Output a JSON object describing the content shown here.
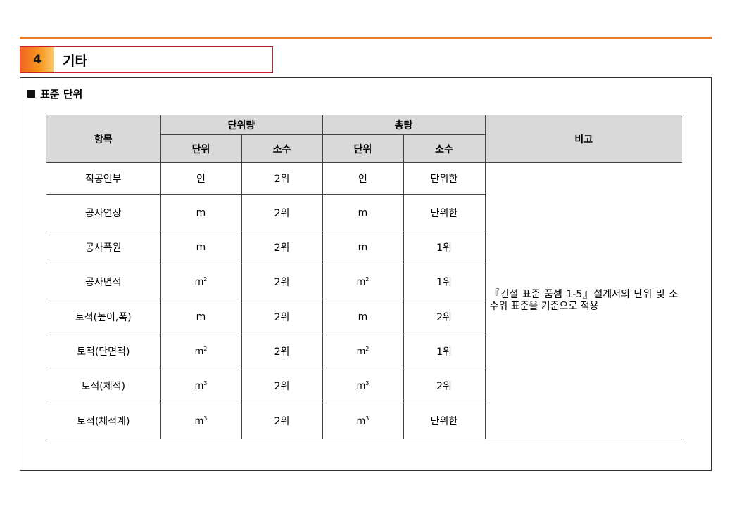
{
  "section": {
    "number": "4",
    "title": "기타"
  },
  "subtitle": "표준 단위",
  "table": {
    "headers": {
      "item": "항목",
      "unit_amount": "단위량",
      "total": "총량",
      "remark": "비고",
      "unit": "단위",
      "decimal": "소수"
    },
    "rows": [
      {
        "item": "직공인부",
        "unit1": "인",
        "dec1": "2위",
        "unit2": "인",
        "dec2": "단위한"
      },
      {
        "item": "공사연장",
        "unit1": "m",
        "dec1": "2위",
        "unit2": "m",
        "dec2": "단위한"
      },
      {
        "item": "공사폭원",
        "unit1": "m",
        "dec1": "2위",
        "unit2": "m",
        "dec2": "1위"
      },
      {
        "item": "공사면적",
        "unit1": "m",
        "unit1_sup": "2",
        "dec1": "2위",
        "unit2": "m",
        "unit2_sup": "2",
        "dec2": "1위"
      },
      {
        "item": "토적(높이,폭)",
        "unit1": "m",
        "dec1": "2위",
        "unit2": "m",
        "dec2": "2위"
      },
      {
        "item": "토적(단면적)",
        "unit1": "m",
        "unit1_sup": "2",
        "dec1": "2위",
        "unit2": "m",
        "unit2_sup": "2",
        "dec2": "1위"
      },
      {
        "item": "토적(체적)",
        "unit1": "m",
        "unit1_sup": "3",
        "dec1": "2위",
        "unit2": "m",
        "unit2_sup": "3",
        "dec2": "2위"
      },
      {
        "item": "토적(체적계)",
        "unit1": "m",
        "unit1_sup": "3",
        "dec1": "2위",
        "unit2": "m",
        "unit2_sup": "3",
        "dec2": "단위한"
      }
    ],
    "remark": "『건설 표준 품셈 1-5』설계서의 단위 및 소수위 표준을 기준으로 적용"
  },
  "colors": {
    "accent": "#ee7a22",
    "header_border": "#c8202a",
    "header_bg": "#d9d9d9"
  }
}
